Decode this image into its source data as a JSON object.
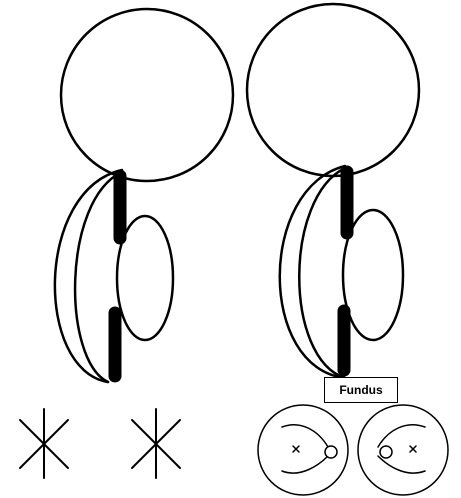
{
  "labels": {
    "fundus": "Fundus"
  },
  "colors": {
    "stroke": "#000000",
    "background": "#ffffff"
  },
  "icons": {
    "cross": "x-mark-icon"
  }
}
